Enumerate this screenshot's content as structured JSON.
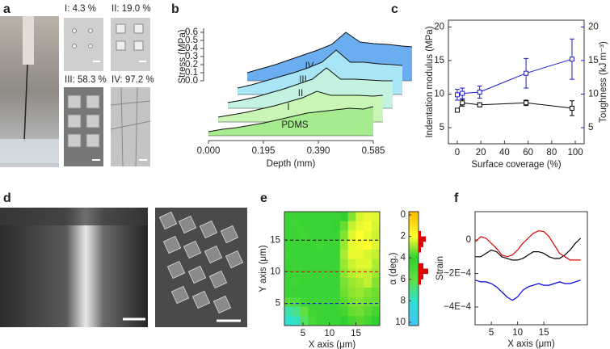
{
  "photo_panels": [
    {
      "panel": "a",
      "captions": [
        "I: 4.3 %",
        "II: 19.0 %",
        "III: 58.3 %",
        "IV: 97.2 %"
      ]
    },
    {
      "panel": "d"
    }
  ],
  "chart_data": [
    {
      "panel": "b",
      "type": "waterfall",
      "xlabel": "Depth (mm)",
      "ylabel": "Stress (MPa)",
      "x": [
        0,
        0.05,
        0.1,
        0.15,
        0.2,
        0.25,
        0.3,
        0.35,
        0.4,
        0.45,
        0.5,
        0.55,
        0.585
      ],
      "xlim": [
        0,
        0.585
      ],
      "xticks": [
        {
          "value": 0,
          "label": "0.000"
        },
        0.195,
        {
          "value": 0.39,
          "label": "0.390"
        },
        0.585
      ],
      "ylim": [
        0,
        0.65
      ],
      "yticks": [
        {
          "value": 0,
          "label": "0.0"
        },
        0.1,
        0.2,
        0.3,
        0.4,
        0.5,
        0.6
      ],
      "series": [
        {
          "name": "PDMS",
          "color": "#a6eb8e",
          "values": [
            0.05,
            0.08,
            0.1,
            0.13,
            0.16,
            0.2,
            0.24,
            0.28,
            0.3,
            0.32,
            0.34,
            0.33,
            0.36
          ]
        },
        {
          "name": "I",
          "color": "#c9f5b5",
          "values": [
            0.06,
            0.09,
            0.12,
            0.16,
            0.2,
            0.25,
            0.3,
            0.38,
            0.33,
            0.33,
            0.33,
            0.32,
            0.33
          ]
        },
        {
          "name": "II",
          "color": "#c4f2e0",
          "values": [
            0.07,
            0.1,
            0.14,
            0.19,
            0.24,
            0.3,
            0.36,
            0.5,
            0.36,
            0.36,
            0.35,
            0.34,
            0.34
          ]
        },
        {
          "name": "III",
          "color": "#a9e6f5",
          "values": [
            0.08,
            0.12,
            0.17,
            0.22,
            0.27,
            0.33,
            0.4,
            0.55,
            0.4,
            0.4,
            0.38,
            0.37,
            0.36
          ]
        },
        {
          "name": "IV",
          "color": "#6aaef0",
          "values": [
            0.1,
            0.15,
            0.2,
            0.26,
            0.32,
            0.38,
            0.45,
            0.6,
            0.48,
            0.46,
            0.45,
            0.43,
            0.42
          ]
        }
      ]
    },
    {
      "panel": "c",
      "type": "errorbar",
      "xlabel": "Surface coverage (%)",
      "ylabel": "Indentation modulus (MPa)",
      "y2label": "Toughness (kJ m⁻³)",
      "x": [
        0,
        4.3,
        19,
        58.3,
        97.2
      ],
      "xlim": [
        -7.5,
        107.5
      ],
      "xticks": [
        0,
        20,
        40,
        60,
        80,
        100
      ],
      "ylim": [
        2.6,
        21
      ],
      "yticks": [
        5,
        10,
        15,
        20
      ],
      "y2lim": [
        2.6,
        21
      ],
      "y2ticks": [
        5,
        10,
        15,
        20
      ],
      "y2color": "#1a1ad0",
      "series": [
        {
          "color": "#000000",
          "values": [
            7.6,
            8.7,
            8.4,
            8.7,
            7.9
          ],
          "errors": [
            0.2,
            0.5,
            0.3,
            0.4,
            1.1
          ]
        },
        {
          "color": "#1a1ad0",
          "axis": "y2",
          "values": [
            9.9,
            10.1,
            10.3,
            13.1,
            15.2
          ],
          "errors": [
            0.8,
            0.8,
            0.9,
            2.2,
            3.0
          ]
        }
      ]
    },
    {
      "panel": "e",
      "type": "heatmap",
      "xlabel": "X axis (μm)",
      "ylabel": "Y axis (μm)",
      "xlim": [
        1.5,
        19.5
      ],
      "ylim": [
        1.5,
        19.5
      ],
      "xticks": [
        5,
        10,
        15
      ],
      "yticks": [
        5,
        10,
        15
      ],
      "x_edges": [
        1.5,
        3,
        4.5,
        6,
        7.5,
        9,
        10.5,
        12,
        13.5,
        15,
        16.5,
        18,
        19.5
      ],
      "y_edges": [
        19.5,
        18,
        16.5,
        15,
        13.5,
        12,
        10.5,
        9,
        7.5,
        6,
        4.5,
        3,
        1.5
      ],
      "z": [
        [
          4.5,
          4.5,
          4.5,
          4.5,
          4.5,
          4.5,
          4.4,
          4,
          3.2,
          2.4,
          2.2,
          2.3
        ],
        [
          4.5,
          4.6,
          4.5,
          4.4,
          4.5,
          4.5,
          4.3,
          3.5,
          2.6,
          2.2,
          2.1,
          2.4
        ],
        [
          4.4,
          4.5,
          4.6,
          4.5,
          4.5,
          4.4,
          4.5,
          3.2,
          2.3,
          2,
          2.2,
          2.5
        ],
        [
          4.5,
          4.5,
          4.5,
          4.5,
          4.6,
          4.5,
          4.4,
          3,
          2.2,
          2.1,
          2,
          2.3
        ],
        [
          4.6,
          4.5,
          4.5,
          4.5,
          4.5,
          4.5,
          4.5,
          2.8,
          2.2,
          2.2,
          2.4,
          2.6
        ],
        [
          4.5,
          4.5,
          4.4,
          4.5,
          4.5,
          4.5,
          4.5,
          3,
          2.5,
          2.3,
          2.3,
          2.8
        ],
        [
          4.5,
          4.5,
          4.5,
          4.5,
          4.5,
          4.5,
          4.4,
          3.1,
          2.7,
          2.5,
          2.6,
          3
        ],
        [
          4.5,
          4.6,
          4.5,
          4.5,
          4.5,
          4.5,
          4.5,
          3.3,
          3,
          2.8,
          2.6,
          3.2
        ],
        [
          4.4,
          4.5,
          4.5,
          4.5,
          4.5,
          4.5,
          4.5,
          3.4,
          3.1,
          3,
          3.2,
          3.4
        ],
        [
          5.5,
          5.2,
          4.6,
          4.5,
          4.5,
          4.5,
          4.5,
          3.6,
          3.3,
          3.2,
          3.4,
          3.5
        ],
        [
          7.5,
          7,
          6,
          4.6,
          4.5,
          4.5,
          4.5,
          3.8,
          3.5,
          3.4,
          3.6,
          3.8
        ],
        [
          8,
          7.8,
          6.5,
          5,
          4.5,
          4.5,
          4.5,
          4,
          3.8,
          3.6,
          3.8,
          4
        ]
      ],
      "profiles": [
        {
          "y": 15,
          "color": "#000000"
        },
        {
          "y": 10,
          "color": "#e00000"
        },
        {
          "y": 5,
          "color": "#0000e0"
        }
      ],
      "colorbar": {
        "label": "α (deg.)",
        "lim": [
          -0.3,
          10.3
        ],
        "ticks": [
          0,
          2,
          4,
          6,
          8,
          10
        ],
        "colorscale": [
          [
            0,
            "#ffc000"
          ],
          [
            2,
            "#ffff30"
          ],
          [
            4,
            "#30d030"
          ],
          [
            6,
            "#60e040"
          ],
          [
            8,
            "#30e0d0"
          ],
          [
            10,
            "#40c8f0"
          ]
        ],
        "hist": {
          "color": "#e00000",
          "bins": [
            0,
            0.5,
            1,
            1.5,
            2,
            2.5,
            3,
            3.5,
            4,
            4.5,
            5,
            5.5,
            6,
            6.5,
            7,
            7.5,
            8,
            8.5,
            9,
            9.5,
            10
          ],
          "counts": [
            0,
            0,
            0,
            1,
            3,
            2,
            1,
            0,
            0,
            2,
            4,
            2,
            1,
            0,
            0,
            0,
            0,
            0,
            0,
            0
          ]
        }
      }
    },
    {
      "panel": "f",
      "type": "line",
      "xlabel": "X axis (μm)",
      "ylabel": "Strain",
      "x": [
        2,
        3,
        4,
        5,
        6,
        7,
        8,
        9,
        10,
        11,
        12,
        13,
        14,
        15,
        16,
        17,
        18,
        19,
        20,
        21,
        22
      ],
      "xlim": [
        1.9,
        23.3
      ],
      "xticks": [
        5,
        10,
        15
      ],
      "ylim": [
        -0.000506,
        0.000169
      ],
      "yticks": [
        0,
        {
          "value": -0.0002,
          "label": "−2E−4"
        },
        {
          "value": -0.0004,
          "label": "−4E−4"
        }
      ],
      "series": [
        {
          "color": "#000000",
          "values": [
            -0.0001,
            -0.0001,
            -8e-05,
            -6e-05,
            -7e-05,
            -0.0001,
            -0.00011,
            -0.00012,
            -0.00012,
            -0.00011,
            -9e-05,
            -7e-05,
            -7e-05,
            -8e-05,
            -0.0001,
            -0.00011,
            -0.00011,
            -9e-05,
            -6e-05,
            -2e-05,
            1e-05
          ]
        },
        {
          "color": "#e00000",
          "values": [
            -1e-05,
            2e-05,
            1e-05,
            -2e-05,
            -5e-05,
            -9e-05,
            -0.0001,
            -9e-05,
            -6e-05,
            -2e-05,
            1e-05,
            4e-05,
            5.5e-05,
            5e-05,
            2e-05,
            -3e-05,
            -8e-05,
            -0.0001,
            -0.00012,
            -0.00012,
            -0.00012
          ]
        },
        {
          "color": "#0000e0",
          "values": [
            -0.00024,
            -0.00025,
            -0.00025,
            -0.00026,
            -0.00028,
            -0.00031,
            -0.00034,
            -0.00036,
            -0.00034,
            -0.0003,
            -0.00028,
            -0.00027,
            -0.00026,
            -0.00027,
            -0.00027,
            -0.00026,
            -0.00025,
            -0.00026,
            -0.00026,
            -0.00025,
            -0.00024
          ]
        }
      ]
    }
  ]
}
